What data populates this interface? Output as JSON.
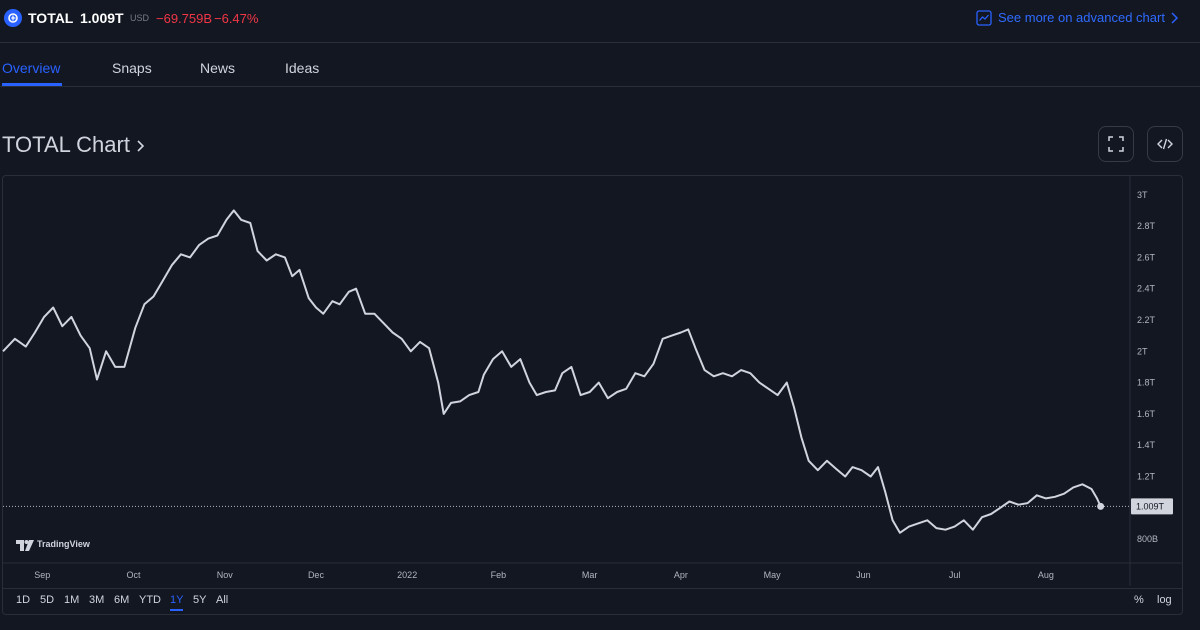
{
  "header": {
    "symbol": "TOTAL",
    "price": "1.009T",
    "currency": "USD",
    "change": "−69.759B",
    "change_percent": "−6.47%",
    "advanced_link": "See more on advanced chart",
    "accent_color": "#2962ff",
    "negative_color": "#f23645"
  },
  "tabs": [
    {
      "label": "Overview",
      "active": true
    },
    {
      "label": "Snaps",
      "active": false
    },
    {
      "label": "News",
      "active": false
    },
    {
      "label": "Ideas",
      "active": false
    }
  ],
  "chart_section": {
    "title": "TOTAL Chart",
    "fullscreen_icon": "fullscreen-icon",
    "embed_icon": "code-embed-icon"
  },
  "watermark": "TradingView",
  "range_buttons": [
    {
      "label": "1D",
      "active": false
    },
    {
      "label": "5D",
      "active": false
    },
    {
      "label": "1M",
      "active": false
    },
    {
      "label": "3M",
      "active": false
    },
    {
      "label": "6M",
      "active": false
    },
    {
      "label": "YTD",
      "active": false
    },
    {
      "label": "1Y",
      "active": true
    },
    {
      "label": "5Y",
      "active": false
    },
    {
      "label": "All",
      "active": false
    }
  ],
  "chart_options": [
    "%",
    "log"
  ],
  "chart_data": {
    "type": "line",
    "title": "",
    "line_color": "#d1d4dc",
    "grid": false,
    "ylim": [
      0.66,
      3.12
    ],
    "y_ticks": [
      3.0,
      2.8,
      2.6,
      2.4,
      2.2,
      2.0,
      1.8,
      1.6,
      1.4,
      1.2,
      0.8
    ],
    "y_tick_labels": [
      "3T",
      "2.8T",
      "2.6T",
      "2.4T",
      "2.2T",
      "2T",
      "1.8T",
      "1.6T",
      "1.4T",
      "1.2T",
      "800B"
    ],
    "x_tick_labels": [
      "Sep",
      "Oct",
      "Nov",
      "Dec",
      "2022",
      "Feb",
      "Mar",
      "Apr",
      "May",
      "Jun",
      "Jul",
      "Aug"
    ],
    "x_tick_positions": [
      0.5,
      1.5,
      2.5,
      3.5,
      4.5,
      5.5,
      6.5,
      7.5,
      8.5,
      9.5,
      10.5,
      11.5
    ],
    "xlim": [
      0.07,
      12.4
    ],
    "last_value": 1.009,
    "last_value_label": "1.009T",
    "series": [
      {
        "values": [
          [
            0.07,
            2.0
          ],
          [
            0.2,
            2.08
          ],
          [
            0.32,
            2.03
          ],
          [
            0.42,
            2.12
          ],
          [
            0.52,
            2.22
          ],
          [
            0.62,
            2.28
          ],
          [
            0.72,
            2.16
          ],
          [
            0.82,
            2.22
          ],
          [
            0.92,
            2.1
          ],
          [
            1.02,
            2.02
          ],
          [
            1.1,
            1.82
          ],
          [
            1.2,
            2.0
          ],
          [
            1.3,
            1.9
          ],
          [
            1.4,
            1.9
          ],
          [
            1.52,
            2.15
          ],
          [
            1.62,
            2.3
          ],
          [
            1.72,
            2.35
          ],
          [
            1.82,
            2.45
          ],
          [
            1.92,
            2.55
          ],
          [
            2.02,
            2.62
          ],
          [
            2.12,
            2.6
          ],
          [
            2.22,
            2.68
          ],
          [
            2.32,
            2.72
          ],
          [
            2.42,
            2.74
          ],
          [
            2.52,
            2.84
          ],
          [
            2.6,
            2.9
          ],
          [
            2.68,
            2.84
          ],
          [
            2.78,
            2.82
          ],
          [
            2.86,
            2.64
          ],
          [
            2.96,
            2.58
          ],
          [
            3.06,
            2.62
          ],
          [
            3.16,
            2.6
          ],
          [
            3.24,
            2.48
          ],
          [
            3.32,
            2.52
          ],
          [
            3.42,
            2.34
          ],
          [
            3.5,
            2.28
          ],
          [
            3.58,
            2.24
          ],
          [
            3.68,
            2.32
          ],
          [
            3.76,
            2.3
          ],
          [
            3.86,
            2.38
          ],
          [
            3.94,
            2.4
          ],
          [
            4.04,
            2.24
          ],
          [
            4.14,
            2.24
          ],
          [
            4.24,
            2.18
          ],
          [
            4.34,
            2.12
          ],
          [
            4.44,
            2.08
          ],
          [
            4.54,
            2.0
          ],
          [
            4.64,
            2.06
          ],
          [
            4.74,
            2.02
          ],
          [
            4.84,
            1.8
          ],
          [
            4.9,
            1.6
          ],
          [
            4.98,
            1.67
          ],
          [
            5.08,
            1.68
          ],
          [
            5.18,
            1.72
          ],
          [
            5.28,
            1.74
          ],
          [
            5.34,
            1.85
          ],
          [
            5.44,
            1.95
          ],
          [
            5.54,
            2.0
          ],
          [
            5.64,
            1.9
          ],
          [
            5.74,
            1.95
          ],
          [
            5.84,
            1.8
          ],
          [
            5.92,
            1.72
          ],
          [
            6.02,
            1.74
          ],
          [
            6.12,
            1.75
          ],
          [
            6.2,
            1.86
          ],
          [
            6.3,
            1.9
          ],
          [
            6.4,
            1.72
          ],
          [
            6.5,
            1.74
          ],
          [
            6.6,
            1.8
          ],
          [
            6.7,
            1.7
          ],
          [
            6.8,
            1.74
          ],
          [
            6.9,
            1.76
          ],
          [
            7.0,
            1.86
          ],
          [
            7.1,
            1.84
          ],
          [
            7.2,
            1.92
          ],
          [
            7.3,
            2.08
          ],
          [
            7.4,
            2.1
          ],
          [
            7.5,
            2.12
          ],
          [
            7.58,
            2.14
          ],
          [
            7.66,
            2.02
          ],
          [
            7.76,
            1.88
          ],
          [
            7.86,
            1.84
          ],
          [
            7.96,
            1.86
          ],
          [
            8.06,
            1.84
          ],
          [
            8.16,
            1.88
          ],
          [
            8.26,
            1.86
          ],
          [
            8.36,
            1.8
          ],
          [
            8.46,
            1.76
          ],
          [
            8.56,
            1.72
          ],
          [
            8.66,
            1.8
          ],
          [
            8.74,
            1.64
          ],
          [
            8.82,
            1.45
          ],
          [
            8.9,
            1.3
          ],
          [
            9.0,
            1.24
          ],
          [
            9.1,
            1.3
          ],
          [
            9.2,
            1.25
          ],
          [
            9.3,
            1.2
          ],
          [
            9.38,
            1.26
          ],
          [
            9.48,
            1.24
          ],
          [
            9.58,
            1.2
          ],
          [
            9.66,
            1.26
          ],
          [
            9.74,
            1.1
          ],
          [
            9.82,
            0.92
          ],
          [
            9.9,
            0.84
          ],
          [
            10.0,
            0.88
          ],
          [
            10.1,
            0.9
          ],
          [
            10.2,
            0.92
          ],
          [
            10.3,
            0.87
          ],
          [
            10.4,
            0.86
          ],
          [
            10.5,
            0.88
          ],
          [
            10.6,
            0.92
          ],
          [
            10.7,
            0.86
          ],
          [
            10.8,
            0.94
          ],
          [
            10.9,
            0.96
          ],
          [
            11.0,
            1.0
          ],
          [
            11.1,
            1.04
          ],
          [
            11.2,
            1.02
          ],
          [
            11.3,
            1.03
          ],
          [
            11.4,
            1.08
          ],
          [
            11.5,
            1.06
          ],
          [
            11.6,
            1.07
          ],
          [
            11.7,
            1.09
          ],
          [
            11.8,
            1.13
          ],
          [
            11.9,
            1.15
          ],
          [
            12.0,
            1.12
          ],
          [
            12.06,
            1.06
          ],
          [
            12.1,
            1.009
          ]
        ]
      }
    ]
  }
}
